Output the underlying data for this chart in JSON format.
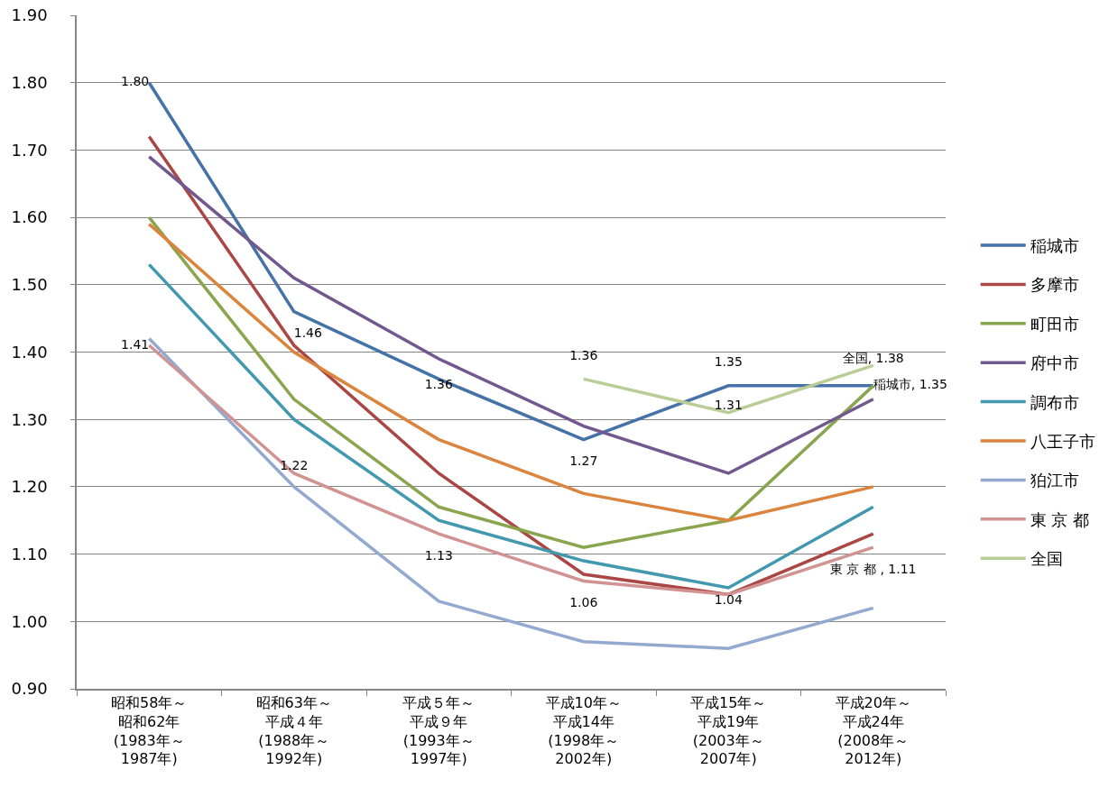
{
  "chart_data": {
    "type": "line",
    "categories": [
      "昭和58年～昭和62年(1983年～1987年)",
      "昭和63年～平成４年(1988年～1992年)",
      "平成５年～平成９年(1993年～1997年)",
      "平成10年～平成14年(1998年～2002年)",
      "平成15年～平成19年(2003年～2007年)",
      "平成20年～平成24年(2008年～2012年)"
    ],
    "ylim": [
      0.9,
      1.9
    ],
    "yticks": [
      {
        "value": 0.9,
        "label": "0.90"
      },
      {
        "value": 1.0,
        "label": "1.00"
      },
      {
        "value": 1.1,
        "label": "1.10"
      },
      {
        "value": 1.2,
        "label": "1.20"
      },
      {
        "value": 1.3,
        "label": "1.30"
      },
      {
        "value": 1.4,
        "label": "1.40"
      },
      {
        "value": 1.5,
        "label": "1.50"
      },
      {
        "value": 1.6,
        "label": "1.60"
      },
      {
        "value": 1.7,
        "label": "1.70"
      },
      {
        "value": 1.8,
        "label": "1.80"
      },
      {
        "value": 1.9,
        "label": "1.90"
      }
    ],
    "grid": "y",
    "legend": "right",
    "series": [
      {
        "name": "稲城市",
        "color": "#4572a7",
        "values": [
          1.8,
          1.46,
          1.36,
          1.27,
          1.35,
          1.35
        ],
        "value_labels": [
          "1.80",
          "1.46",
          "1.36",
          "1.27",
          "1.35",
          "稲城市, 1.35"
        ]
      },
      {
        "name": "多摩市",
        "color": "#aa4643",
        "values": [
          1.72,
          1.41,
          1.22,
          1.07,
          1.04,
          1.13
        ]
      },
      {
        "name": "町田市",
        "color": "#89a54e",
        "values": [
          1.6,
          1.33,
          1.17,
          1.11,
          1.15,
          1.35
        ]
      },
      {
        "name": "府中市",
        "color": "#71588f",
        "values": [
          1.69,
          1.51,
          1.39,
          1.29,
          1.22,
          1.33
        ]
      },
      {
        "name": "調布市",
        "color": "#4198af",
        "values": [
          1.53,
          1.3,
          1.15,
          1.09,
          1.05,
          1.17
        ]
      },
      {
        "name": "八王子市",
        "color": "#db843d",
        "values": [
          1.59,
          1.4,
          1.27,
          1.19,
          1.15,
          1.2
        ]
      },
      {
        "name": "狛江市",
        "color": "#93a9cf",
        "values": [
          1.42,
          1.2,
          1.03,
          0.97,
          0.96,
          1.02
        ]
      },
      {
        "name": "東 京 都",
        "color": "#d19392",
        "values": [
          1.41,
          1.22,
          1.13,
          1.06,
          1.04,
          1.11
        ],
        "value_labels": [
          "1.41",
          "1.22",
          "1.13",
          "1.06",
          "1.04",
          "東 京 都 , 1.11"
        ]
      },
      {
        "name": "全国",
        "color": "#b9cd96",
        "values": [
          null,
          null,
          null,
          1.36,
          1.31,
          1.38
        ],
        "value_labels": [
          null,
          null,
          null,
          "1.36",
          "1.31",
          "全国, 1.38"
        ]
      }
    ]
  }
}
